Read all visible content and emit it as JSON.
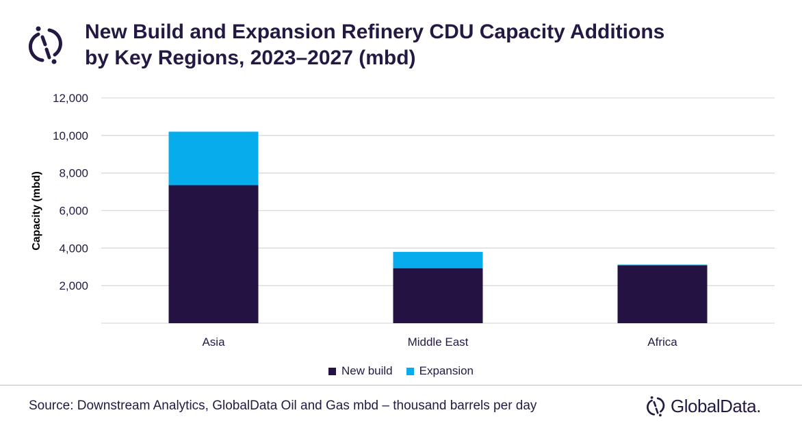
{
  "title_line1": "New Build and Expansion Refinery CDU Capacity Additions",
  "title_line2": "by Key Regions, 2023–2027 (mbd)",
  "source": "Source: Downstream Analytics, GlobalData Oil and Gas mbd – thousand barrels per day",
  "brand": "GlobalData.",
  "colors": {
    "new_build": "#231242",
    "expansion": "#06ACEC",
    "grid": "#d9d9d9"
  },
  "chart_data": {
    "type": "bar",
    "stacked": true,
    "title": "New Build and Expansion Refinery CDU Capacity Additions by Key Regions, 2023–2027 (mbd)",
    "xlabel": "",
    "ylabel": "Capacity (mbd)",
    "ylim": [
      0,
      12000
    ],
    "yticks": [
      2000,
      4000,
      6000,
      8000,
      10000,
      12000
    ],
    "ytick_labels": [
      "2,000",
      "4,000",
      "6,000",
      "8,000",
      "10,000",
      "12,000"
    ],
    "categories": [
      "Asia",
      "Middle East",
      "Africa"
    ],
    "series": [
      {
        "name": "New build",
        "values": [
          7350,
          2930,
          3080
        ]
      },
      {
        "name": "Expansion",
        "values": [
          2850,
          870,
          40
        ]
      }
    ],
    "grid": true,
    "legend_placement": "bottom"
  }
}
